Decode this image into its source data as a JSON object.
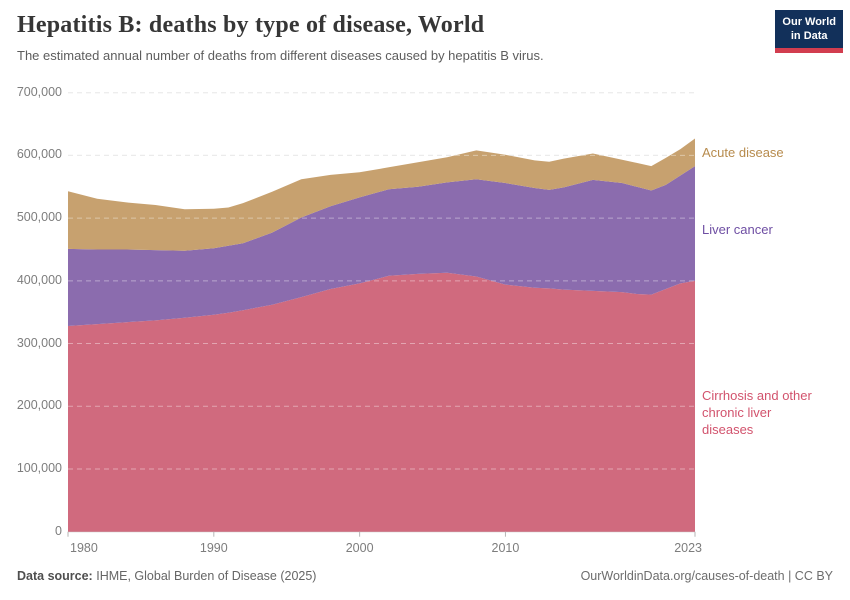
{
  "header": {
    "title": "Hepatitis B: deaths by type of disease, World",
    "subtitle": "The estimated annual number of deaths from different diseases caused by hepatitis B virus."
  },
  "logo": {
    "line1": "Our World",
    "line2": "in Data",
    "bg_color": "#12305a",
    "stripe_color": "#d23d4f"
  },
  "footer": {
    "source_label": "Data source:",
    "source_text": "IHME, Global Burden of Disease (2025)",
    "credit": "OurWorldinData.org/causes-of-death | CC BY"
  },
  "chart_data": {
    "type": "area",
    "stacked": true,
    "title": "Hepatitis B: deaths by type of disease, World",
    "xlabel": "",
    "ylabel": "deaths",
    "grid": "dashed",
    "legend_position": "right-of-plot",
    "xlim": [
      1980,
      2023
    ],
    "ylim": [
      0,
      700000
    ],
    "x": [
      1980,
      1982,
      1984,
      1986,
      1988,
      1990,
      1991,
      1992,
      1994,
      1996,
      1998,
      2000,
      2002,
      2004,
      2006,
      2008,
      2010,
      2012,
      2013,
      2014,
      2016,
      2018,
      2019,
      2020,
      2021,
      2022,
      2023
    ],
    "series": [
      {
        "name": "Cirrhosis and other chronic liver diseases",
        "label_lines": [
          "Cirrhosis and other",
          "chronic liver",
          "diseases"
        ],
        "color": "#d06a7e",
        "label_color": "#d2536d",
        "values": [
          328000,
          331000,
          334000,
          337000,
          341000,
          346000,
          349000,
          353000,
          362000,
          374000,
          387000,
          396000,
          408000,
          411000,
          413000,
          407000,
          394000,
          389000,
          388000,
          386000,
          384000,
          382000,
          379000,
          378000,
          387000,
          396000,
          400000
        ]
      },
      {
        "name": "Liver cancer",
        "label_lines": [
          "Liver cancer"
        ],
        "color": "#8b6cae",
        "label_color": "#6e4ea3",
        "values": [
          123000,
          119000,
          116000,
          112000,
          107000,
          106000,
          107000,
          107000,
          115000,
          127000,
          132000,
          137000,
          138000,
          139000,
          144000,
          155000,
          162000,
          159000,
          157000,
          163000,
          177000,
          174000,
          171000,
          166000,
          166000,
          172000,
          183000
        ]
      },
      {
        "name": "Acute disease",
        "label_lines": [
          "Acute disease"
        ],
        "color": "#c7a16f",
        "label_color": "#b78b4d",
        "values": [
          92000,
          81000,
          75000,
          72000,
          66000,
          63000,
          61000,
          64000,
          65000,
          61000,
          50000,
          40000,
          35000,
          39000,
          40000,
          46000,
          45000,
          44000,
          45000,
          46000,
          42000,
          37000,
          38000,
          39000,
          43000,
          42000,
          44000
        ]
      }
    ],
    "y_ticks": [
      {
        "value": 0,
        "label": "0"
      },
      {
        "value": 100000,
        "label": "100,000"
      },
      {
        "value": 200000,
        "label": "200,000"
      },
      {
        "value": 300000,
        "label": "300,000"
      },
      {
        "value": 400000,
        "label": "400,000"
      },
      {
        "value": 500000,
        "label": "500,000"
      },
      {
        "value": 600000,
        "label": "600,000"
      },
      {
        "value": 700000,
        "label": "700,000"
      }
    ],
    "x_ticks": [
      {
        "year": 1980,
        "label": "1980",
        "align": "start"
      },
      {
        "year": 1990,
        "label": "1990",
        "align": "middle"
      },
      {
        "year": 2000,
        "label": "2000",
        "align": "middle"
      },
      {
        "year": 2010,
        "label": "2010",
        "align": "middle"
      },
      {
        "year": 2023,
        "label": "2023",
        "align": "end"
      }
    ],
    "colors": {
      "gridline": "#dcdcdc",
      "baseline": "#c9c9c9",
      "tick_mark": "#b6b6b6",
      "axis_text": "#7d7d7d"
    }
  }
}
